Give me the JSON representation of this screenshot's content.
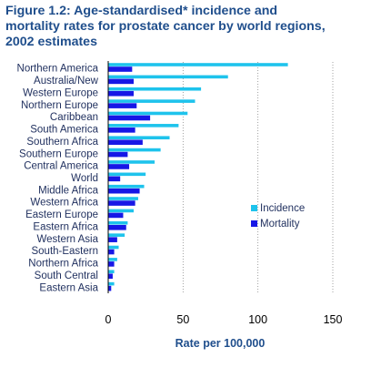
{
  "title_lines": [
    "Figure 1.2: Age-standardised* incidence and",
    "mortality rates for prostate cancer by world regions,",
    "2002 estimates"
  ],
  "colors": {
    "incidence": "#1ec3ec",
    "mortality": "#1717e6",
    "title": "#1f4e8c"
  },
  "chart_data": {
    "type": "bar",
    "orientation": "horizontal",
    "categories": [
      "Northern America",
      "Australia/New",
      "Western Europe",
      "Northern Europe",
      "Caribbean",
      "South America",
      "Southern Africa",
      "Southern Europe",
      "Central America",
      "World",
      "Middle Africa",
      "Western Africa",
      "Eastern Europe",
      "Eastern Africa",
      "Western Asia",
      "South-Eastern",
      "Northern Africa",
      "South Central",
      "Eastern Asia"
    ],
    "series": [
      {
        "name": "Incidence",
        "values": [
          120,
          80,
          62,
          58,
          53,
          47,
          41,
          35,
          31,
          25,
          24,
          20,
          17,
          13,
          11,
          7,
          6,
          4,
          4
        ]
      },
      {
        "name": "Mortality",
        "values": [
          16,
          17,
          17,
          19,
          28,
          18,
          23,
          13,
          14,
          8,
          21,
          18,
          10,
          12,
          6,
          4,
          4,
          3,
          2
        ]
      }
    ],
    "xlabel": "Rate per 100,000",
    "xlim": [
      0,
      150
    ],
    "xticks": [
      0,
      50,
      100,
      150
    ],
    "grid": "vertical-dotted",
    "legend_position": "right"
  }
}
